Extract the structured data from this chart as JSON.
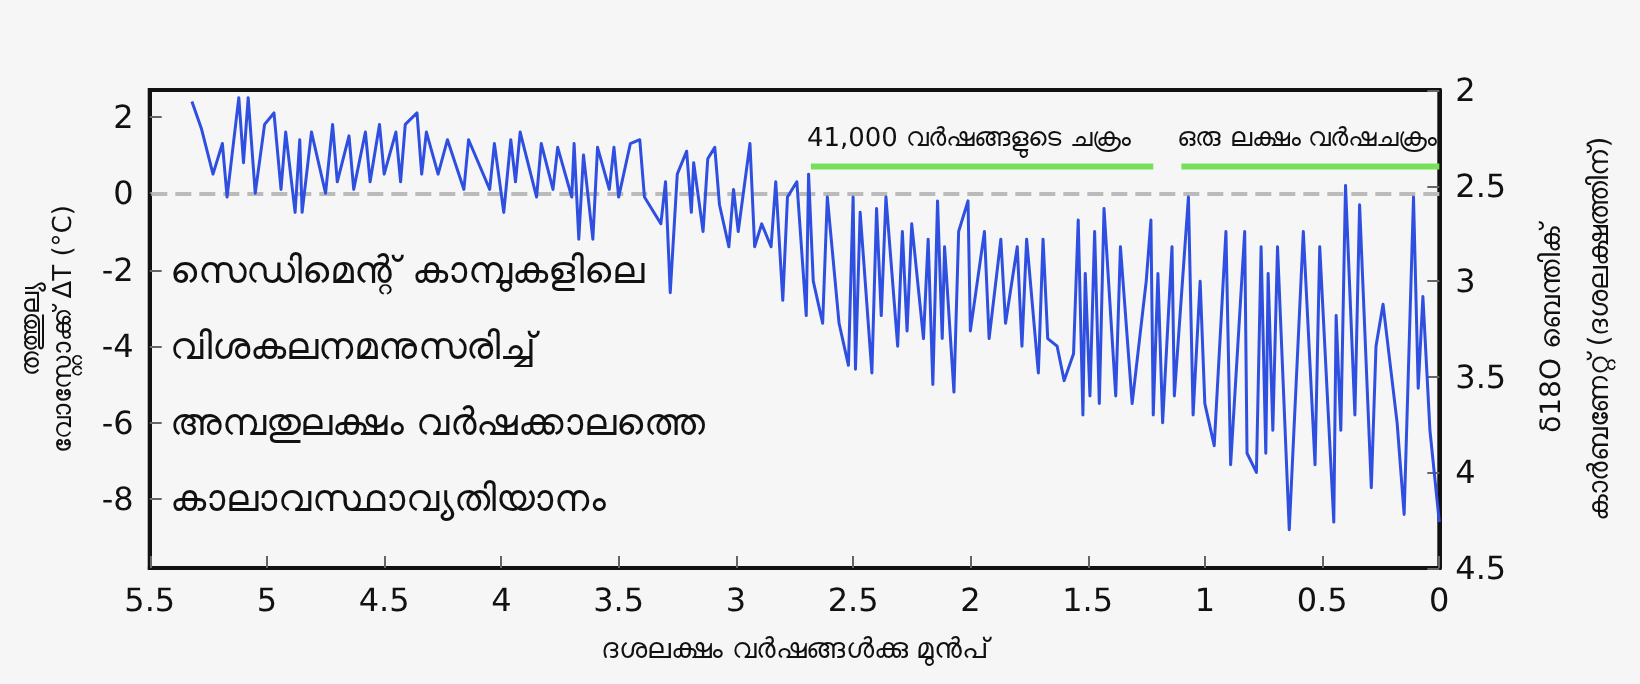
{
  "chart_data": {
    "type": "line",
    "xlabel": "ദശലക്ഷം വർഷങ്ങൾക്കു മുൻപ്",
    "ylabel": "തത്തുല്യ\nവോസ്റ്റോക്ക് ΔT (°C)",
    "y2label": "δ18O ബെന്തിക്\nകാർബണേറ്റ് (ദശലക്ഷത്തിന്)",
    "annotations": [
      "സെഡിമെന്റ് കാമ്പുകളിലെ",
      "വിശകലനമനുസരിച്ച്",
      "അമ്പതുലക്ഷം വർഷക്കാലത്തെ",
      "കാലാവസ്ഥാവ്യതിയാനം"
    ],
    "xlim": [
      5.5,
      0
    ],
    "xticks": [
      5.5,
      5,
      4.5,
      4,
      3.5,
      3,
      2.5,
      2,
      1.5,
      1,
      0.5,
      0
    ],
    "ylim": [
      -9.8,
      2.7
    ],
    "yticks": [
      -8,
      -6,
      -4,
      -2,
      0,
      2
    ],
    "y2lim": [
      4.5,
      2
    ],
    "y2ticks": [
      2,
      2.5,
      3,
      3.5,
      4,
      4.5
    ],
    "grid": false,
    "legend": false,
    "line_style": "solid",
    "ref_lines": [
      {
        "axis": "y",
        "value": 0,
        "color": "#bbbbbb",
        "line_style": "dashed"
      }
    ],
    "series": [
      {
        "name": "41,000 വർഷങ്ങളുടെ ചക്രം",
        "color": "#77e05a",
        "x": [
          2.68,
          1.22
        ],
        "values": [
          0.7,
          0.7
        ]
      },
      {
        "name": "ഒരു ലക്ഷം വർഷചക്രം",
        "color": "#77e05a",
        "x": [
          1.1,
          0
        ],
        "values": [
          0.7,
          0.7
        ]
      },
      {
        "color": "#2f4fe0",
        "x": [
          5.32,
          5.28,
          5.23,
          5.19,
          5.17,
          5.12,
          5.1,
          5.08,
          5.05,
          5.01,
          4.97,
          4.94,
          4.92,
          4.88,
          4.86,
          4.85,
          4.81,
          4.75,
          4.72,
          4.7,
          4.65,
          4.63,
          4.58,
          4.56,
          4.52,
          4.5,
          4.45,
          4.43,
          4.41,
          4.36,
          4.34,
          4.32,
          4.27,
          4.23,
          4.16,
          4.14,
          4.05,
          4.03,
          3.99,
          3.96,
          3.94,
          3.92,
          3.85,
          3.83,
          3.78,
          3.76,
          3.7,
          3.69,
          3.67,
          3.65,
          3.61,
          3.59,
          3.54,
          3.52,
          3.5,
          3.45,
          3.41,
          3.39,
          3.36,
          3.32,
          3.3,
          3.28,
          3.25,
          3.21,
          3.19,
          3.18,
          3.14,
          3.12,
          3.09,
          3.07,
          3.03,
          3.01,
          2.99,
          2.94,
          2.92,
          2.89,
          2.85,
          2.83,
          2.8,
          2.78,
          2.74,
          2.7,
          2.69,
          2.67,
          2.63,
          2.61,
          2.56,
          2.52,
          2.5,
          2.49,
          2.47,
          2.42,
          2.4,
          2.38,
          2.36,
          2.31,
          2.29,
          2.27,
          2.25,
          2.2,
          2.18,
          2.16,
          2.14,
          2.12,
          2.11,
          2.07,
          2.05,
          2.01,
          2.0,
          1.94,
          1.92,
          1.87,
          1.85,
          1.8,
          1.78,
          1.76,
          1.71,
          1.69,
          1.67,
          1.63,
          1.6,
          1.56,
          1.54,
          1.52,
          1.51,
          1.49,
          1.47,
          1.45,
          1.43,
          1.38,
          1.36,
          1.31,
          1.25,
          1.23,
          1.22,
          1.2,
          1.18,
          1.14,
          1.13,
          1.07,
          1.05,
          1.02,
          1.0,
          0.96,
          0.91,
          0.89,
          0.83,
          0.82,
          0.78,
          0.76,
          0.74,
          0.73,
          0.71,
          0.69,
          0.64,
          0.58,
          0.53,
          0.51,
          0.45,
          0.44,
          0.42,
          0.4,
          0.36,
          0.34,
          0.29,
          0.27,
          0.24,
          0.18,
          0.15,
          0.11,
          0.09,
          0.07,
          0.04,
          0.0
        ],
        "values": [
          2.4,
          1.7,
          0.5,
          1.3,
          -0.1,
          2.5,
          0.8,
          2.5,
          0.0,
          1.8,
          2.1,
          0.1,
          1.6,
          -0.5,
          1.4,
          -0.5,
          1.6,
          0.0,
          1.8,
          0.3,
          1.5,
          0.1,
          1.6,
          0.3,
          1.8,
          0.5,
          1.6,
          0.3,
          1.8,
          2.1,
          0.5,
          1.6,
          0.5,
          1.4,
          0.1,
          1.4,
          0.1,
          1.3,
          -0.5,
          1.4,
          0.3,
          1.6,
          -0.1,
          1.3,
          0.1,
          1.2,
          -0.1,
          1.3,
          -1.2,
          1.0,
          -1.2,
          1.2,
          0.1,
          1.2,
          -0.1,
          1.3,
          1.4,
          -0.1,
          -0.4,
          -0.8,
          0.3,
          -2.6,
          0.5,
          1.1,
          -0.5,
          0.8,
          -1.0,
          0.9,
          1.2,
          -0.3,
          -1.4,
          0.1,
          -1.0,
          1.3,
          -1.4,
          -0.8,
          -1.4,
          0.3,
          -2.8,
          -0.1,
          0.3,
          -3.2,
          0.5,
          -2.3,
          -3.4,
          -0.1,
          -3.4,
          -4.5,
          -0.1,
          -4.6,
          -0.5,
          -4.7,
          -0.4,
          -3.2,
          -0.1,
          -4.0,
          -1.0,
          -3.6,
          -0.8,
          -3.8,
          -1.2,
          -5.0,
          -0.2,
          -3.8,
          -1.4,
          -5.2,
          -1.0,
          -0.2,
          -3.6,
          -1.0,
          -3.8,
          -1.2,
          -3.4,
          -1.4,
          -4.0,
          -1.2,
          -4.7,
          -1.2,
          -3.8,
          -4.0,
          -4.9,
          -4.2,
          -0.7,
          -5.8,
          -2.1,
          -5.3,
          -1.0,
          -5.5,
          -0.4,
          -5.3,
          -1.4,
          -5.5,
          -2.3,
          -0.7,
          -5.8,
          -2.1,
          -6.0,
          -1.4,
          -5.3,
          -0.1,
          -5.8,
          -2.3,
          -5.5,
          -6.6,
          -1.0,
          -7.1,
          -1.0,
          -6.8,
          -7.3,
          -1.4,
          -6.8,
          -2.1,
          -6.2,
          -1.4,
          -8.8,
          -1.0,
          -7.1,
          -1.4,
          -8.6,
          -3.2,
          -6.2,
          0.2,
          -5.8,
          -0.3,
          -7.7,
          -4.0,
          -2.9,
          -6.0,
          -8.4,
          -0.1,
          -5.1,
          -2.7,
          -6.2,
          -8.6
        ]
      }
    ]
  }
}
